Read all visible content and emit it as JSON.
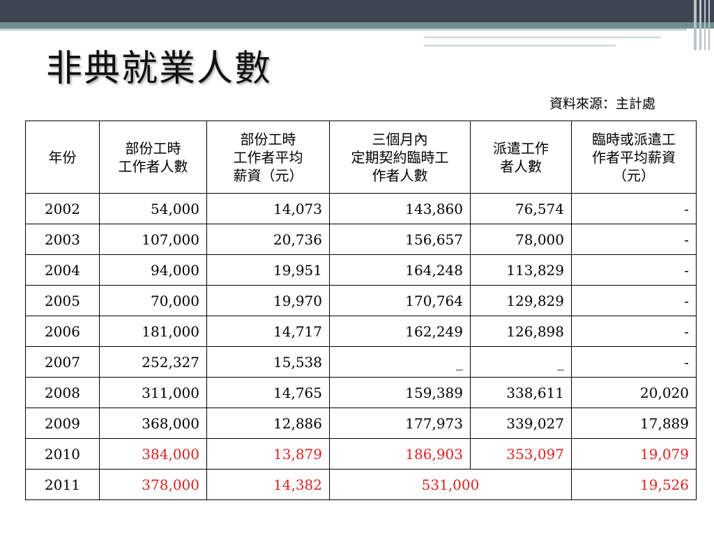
{
  "slide": {
    "title": "非典就業人數",
    "source": "資料來源：主計處"
  },
  "table": {
    "headers": [
      [
        "年份"
      ],
      [
        "部份工時",
        "工作者人數"
      ],
      [
        "部份工時",
        "工作者平均",
        "薪資（元）"
      ],
      [
        "三個月內",
        "定期契約臨時工",
        "作者人數"
      ],
      [
        "派遣工作",
        "者人數"
      ],
      [
        "臨時或派遣工",
        "作者平均薪資",
        "（元）"
      ]
    ],
    "rows": [
      {
        "year": "2002",
        "c1": "54,000",
        "c2": "14,073",
        "c3": "143,860",
        "c4": "76,574",
        "c5": "-"
      },
      {
        "year": "2003",
        "c1": "107,000",
        "c2": "20,736",
        "c3": "156,657",
        "c4": "78,000",
        "c5": "-"
      },
      {
        "year": "2004",
        "c1": "94,000",
        "c2": "19,951",
        "c3": "164,248",
        "c4": "113,829",
        "c5": "-"
      },
      {
        "year": "2005",
        "c1": "70,000",
        "c2": "19,970",
        "c3": "170,764",
        "c4": "129,829",
        "c5": "-"
      },
      {
        "year": "2006",
        "c1": "181,000",
        "c2": "14,717",
        "c3": "162,249",
        "c4": "126,898",
        "c5": "-"
      },
      {
        "year": "2007",
        "c1": "252,327",
        "c2": "15,538",
        "c3": "_",
        "c4": "_",
        "c5": "-"
      },
      {
        "year": "2008",
        "c1": "311,000",
        "c2": "14,765",
        "c3": "159,389",
        "c4": "338,611",
        "c5": "20,020"
      },
      {
        "year": "2009",
        "c1": "368,000",
        "c2": "12,886",
        "c3": "177,973",
        "c4": "339,027",
        "c5": "17,889"
      },
      {
        "year": "2010",
        "c1": "384,000",
        "c2": "13,879",
        "c3": "186,903",
        "c4": "353,097",
        "c5": "19,079"
      },
      {
        "year": "2011",
        "c1": "378,000",
        "c2": "14,382",
        "c34": "531,000",
        "c5": "19,526"
      }
    ]
  },
  "colors": {
    "highlight": "#e01e1e",
    "topbar": "#3d4452",
    "accent": "#6f8f8d"
  }
}
